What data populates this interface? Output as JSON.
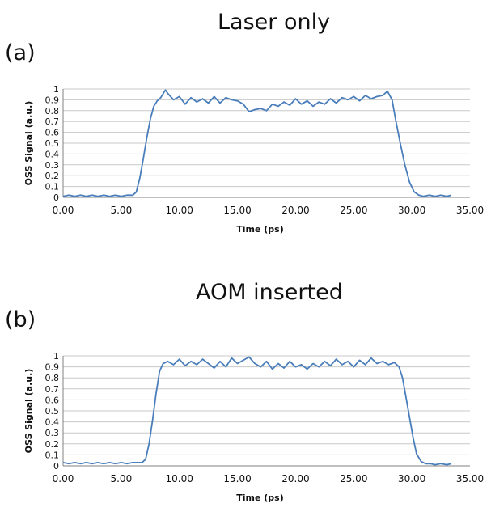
{
  "panels": [
    {
      "title": "Laser only",
      "label": "(a)"
    },
    {
      "title": "AOM inserted",
      "label": "(b)"
    }
  ],
  "colors": {
    "line": "#4a7ebb",
    "grid": "#c8c8c8",
    "axis": "#808080",
    "frame": "#8c8c8c"
  },
  "chart_data": [
    {
      "type": "line",
      "title": "Laser only",
      "xlabel": "Time (ps)",
      "ylabel": "OSS Signal (a.u.)",
      "xlim": [
        0,
        35
      ],
      "ylim": [
        0,
        1
      ],
      "xticks": [
        "0.00",
        "5.00",
        "10.00",
        "15.00",
        "20.00",
        "25.00",
        "30.00",
        "35.00"
      ],
      "yticks": [
        "0",
        "0.1",
        "0.2",
        "0.3",
        "0.4",
        "0.5",
        "0.6",
        "0.7",
        "0.8",
        "0.9",
        "1"
      ],
      "grid": true,
      "series": [
        {
          "x": [
            0.0,
            0.5,
            1.0,
            1.5,
            2.0,
            2.5,
            3.0,
            3.5,
            4.0,
            4.5,
            5.0,
            5.5,
            6.0,
            6.3,
            6.6,
            6.9,
            7.2,
            7.5,
            7.8,
            8.1,
            8.4,
            8.8,
            9.0,
            9.5,
            10.0,
            10.5,
            11.0,
            11.5,
            12.0,
            12.5,
            13.0,
            13.5,
            14.0,
            14.5,
            15.0,
            15.5,
            16.0,
            16.5,
            17.0,
            17.5,
            18.0,
            18.5,
            19.0,
            19.5,
            20.0,
            20.5,
            21.0,
            21.5,
            22.0,
            22.5,
            23.0,
            23.5,
            24.0,
            24.5,
            25.0,
            25.5,
            26.0,
            26.5,
            27.0,
            27.5,
            27.9,
            28.3,
            28.6,
            29.0,
            29.4,
            29.8,
            30.2,
            30.6,
            31.0,
            31.5,
            32.0,
            32.5,
            33.0,
            33.4
          ],
          "y": [
            0.01,
            0.02,
            0.01,
            0.02,
            0.01,
            0.02,
            0.01,
            0.02,
            0.01,
            0.02,
            0.01,
            0.02,
            0.02,
            0.05,
            0.18,
            0.36,
            0.55,
            0.72,
            0.84,
            0.89,
            0.92,
            0.99,
            0.96,
            0.9,
            0.93,
            0.86,
            0.92,
            0.88,
            0.91,
            0.87,
            0.93,
            0.87,
            0.92,
            0.9,
            0.89,
            0.86,
            0.79,
            0.81,
            0.82,
            0.8,
            0.86,
            0.84,
            0.88,
            0.85,
            0.91,
            0.86,
            0.89,
            0.84,
            0.88,
            0.86,
            0.91,
            0.87,
            0.92,
            0.9,
            0.93,
            0.89,
            0.94,
            0.91,
            0.93,
            0.94,
            0.98,
            0.9,
            0.72,
            0.5,
            0.3,
            0.14,
            0.05,
            0.02,
            0.01,
            0.02,
            0.01,
            0.02,
            0.01,
            0.02
          ]
        }
      ]
    },
    {
      "type": "line",
      "title": "AOM inserted",
      "xlabel": "Time (ps)",
      "ylabel": "OSS Signal (a.u.)",
      "xlim": [
        0,
        35
      ],
      "ylim": [
        0,
        1
      ],
      "xticks": [
        "0.00",
        "5.00",
        "10.00",
        "15.00",
        "20.00",
        "25.00",
        "30.00",
        "35.00"
      ],
      "yticks": [
        "0",
        "0.1",
        "0.2",
        "0.3",
        "0.4",
        "0.5",
        "0.6",
        "0.7",
        "0.8",
        "0.9",
        "1"
      ],
      "grid": true,
      "series": [
        {
          "x": [
            0.0,
            0.5,
            1.0,
            1.5,
            2.0,
            2.5,
            3.0,
            3.5,
            4.0,
            4.5,
            5.0,
            5.5,
            6.0,
            6.5,
            6.8,
            7.1,
            7.4,
            7.7,
            8.0,
            8.3,
            8.6,
            9.0,
            9.5,
            10.0,
            10.5,
            11.0,
            11.5,
            12.0,
            12.5,
            13.0,
            13.5,
            14.0,
            14.5,
            15.0,
            15.5,
            16.0,
            16.5,
            17.0,
            17.5,
            18.0,
            18.5,
            19.0,
            19.5,
            20.0,
            20.5,
            21.0,
            21.5,
            22.0,
            22.5,
            23.0,
            23.5,
            24.0,
            24.5,
            25.0,
            25.5,
            26.0,
            26.5,
            27.0,
            27.5,
            28.0,
            28.5,
            28.9,
            29.2,
            29.5,
            29.8,
            30.1,
            30.4,
            30.8,
            31.2,
            31.6,
            32.0,
            32.5,
            33.0,
            33.4
          ],
          "y": [
            0.03,
            0.02,
            0.03,
            0.02,
            0.03,
            0.02,
            0.03,
            0.02,
            0.03,
            0.02,
            0.03,
            0.02,
            0.03,
            0.03,
            0.03,
            0.06,
            0.2,
            0.42,
            0.66,
            0.86,
            0.93,
            0.95,
            0.92,
            0.97,
            0.91,
            0.95,
            0.92,
            0.97,
            0.93,
            0.89,
            0.95,
            0.9,
            0.98,
            0.93,
            0.96,
            0.99,
            0.93,
            0.9,
            0.95,
            0.88,
            0.93,
            0.89,
            0.95,
            0.9,
            0.92,
            0.88,
            0.93,
            0.9,
            0.95,
            0.91,
            0.97,
            0.92,
            0.95,
            0.9,
            0.96,
            0.92,
            0.98,
            0.93,
            0.95,
            0.92,
            0.94,
            0.9,
            0.8,
            0.62,
            0.44,
            0.26,
            0.11,
            0.04,
            0.02,
            0.02,
            0.01,
            0.02,
            0.01,
            0.02
          ]
        }
      ]
    }
  ]
}
